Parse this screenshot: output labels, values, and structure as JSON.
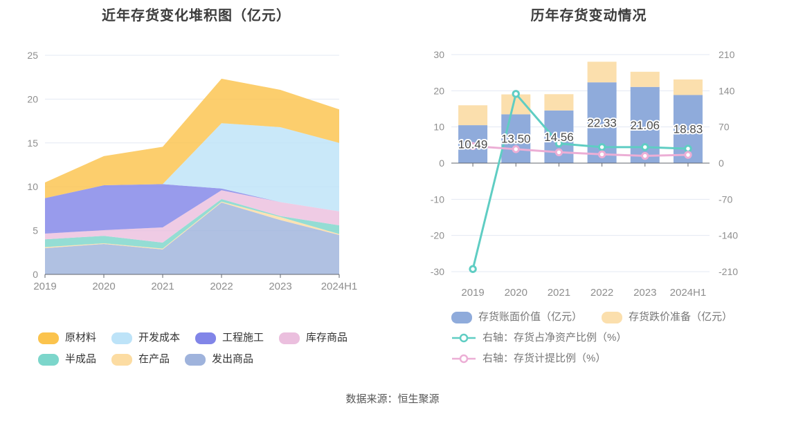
{
  "footer": {
    "source": "数据来源：恒生聚源"
  },
  "colors": {
    "grid": "#E3E8F3",
    "axis": "#62666D",
    "tick_label": "#8E8E8E",
    "category_label": "#8E8E8E",
    "value_label": "#4A4A4A",
    "title": "#3C3C3C"
  },
  "chart_data": [
    {
      "type": "area",
      "stacked": true,
      "title": "近年存货变化堆积图（亿元）",
      "categories": [
        "2019",
        "2020",
        "2021",
        "2022",
        "2023",
        "2024H1"
      ],
      "xlabel": "",
      "ylabel": "",
      "ylim": [
        0,
        25
      ],
      "yticks": [
        0,
        5,
        10,
        15,
        20,
        25
      ],
      "grid": true,
      "legend_position": "bottom",
      "series": [
        {
          "name": "发出商品",
          "color": "#9FB3DC",
          "values": [
            3.0,
            3.47,
            2.85,
            8.2,
            6.2,
            4.5
          ]
        },
        {
          "name": "在产品",
          "color": "#FCDCA2",
          "values": [
            0.12,
            0.08,
            0.1,
            0.1,
            0.35,
            0.1
          ]
        },
        {
          "name": "半成品",
          "color": "#7CD6CB",
          "values": [
            0.88,
            0.85,
            0.68,
            0.3,
            0.1,
            1.0
          ]
        },
        {
          "name": "库存商品",
          "color": "#EBBFDE",
          "values": [
            0.65,
            0.65,
            1.73,
            1.0,
            1.6,
            1.6
          ]
        },
        {
          "name": "工程施工",
          "color": "#8185E8",
          "values": [
            4.05,
            5.12,
            4.94,
            0.2,
            0.0,
            0.0
          ]
        },
        {
          "name": "开发成本",
          "color": "#BDE3F8",
          "values": [
            0.0,
            0.0,
            0.0,
            7.45,
            8.55,
            7.8
          ]
        },
        {
          "name": "原材料",
          "color": "#FBC34D",
          "values": [
            1.79,
            3.33,
            4.26,
            5.08,
            4.26,
            3.83
          ]
        }
      ],
      "legend_order": [
        4,
        5,
        6,
        3,
        2,
        1,
        0
      ],
      "legend_rows": [
        [
          "原材料",
          "开发成本",
          "工程施工",
          "库存商品"
        ],
        [
          "半成品",
          "在产品",
          "发出商品"
        ]
      ]
    },
    {
      "type": "bar",
      "title": "历年存货变动情况",
      "categories": [
        "2019",
        "2020",
        "2021",
        "2022",
        "2023",
        "2024H1"
      ],
      "left_axis": {
        "lim": [
          -30,
          30
        ],
        "ticks": [
          30,
          20,
          10,
          0,
          -10,
          -20,
          -30
        ]
      },
      "right_axis": {
        "lim": [
          -210,
          210
        ],
        "ticks": [
          210,
          140,
          70,
          0,
          -70,
          -140,
          -210
        ]
      },
      "grid": true,
      "legend_position": "bottom",
      "bar_series": [
        {
          "name": "存货账面价值（亿元）",
          "color": "#8FABDB",
          "values": [
            10.49,
            13.5,
            14.56,
            22.33,
            21.06,
            18.83
          ],
          "labels": [
            "10.49",
            "13.50",
            "14.56",
            "22.33",
            "21.06",
            "18.83"
          ]
        },
        {
          "name": "存货跌价准备（亿元）",
          "color": "#FBDFAD",
          "values": [
            5.5,
            5.5,
            4.5,
            5.7,
            4.2,
            4.3
          ]
        }
      ],
      "line_series": [
        {
          "name": "右轴：存货占净资产比例（%）",
          "color": "#5FCDC3",
          "axis": "right",
          "values": [
            -205,
            134,
            38,
            31,
            31,
            28
          ]
        },
        {
          "name": "右轴：存货计提比例（%）",
          "color": "#ECAED5",
          "axis": "right",
          "values": [
            33,
            27,
            21,
            17,
            14,
            16
          ]
        }
      ]
    }
  ]
}
